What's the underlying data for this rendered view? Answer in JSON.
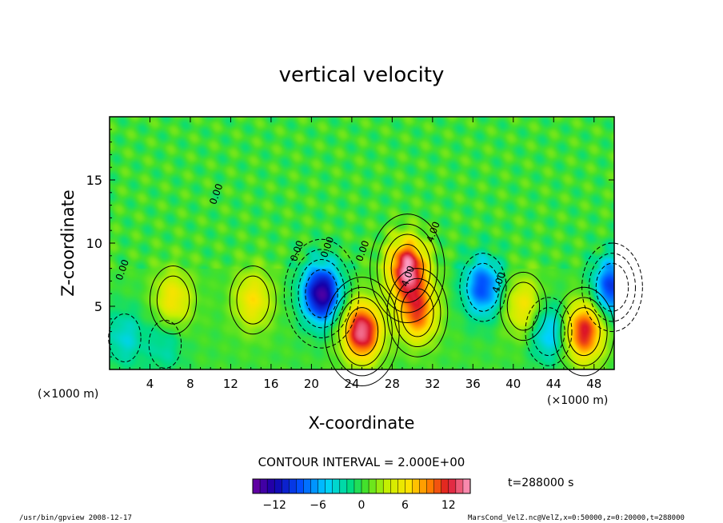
{
  "chart_data": {
    "type": "heatmap",
    "title": "vertical velocity",
    "xlabel": "X-coordinate",
    "ylabel": "Z-coordinate",
    "x_unit_left": "(×1000 m)",
    "x_unit_right": "(×1000 m)",
    "xlim": [
      0,
      50
    ],
    "ylim": [
      0,
      20
    ],
    "x_ticks": [
      "4",
      "8",
      "12",
      "16",
      "20",
      "24",
      "28",
      "32",
      "36",
      "40",
      "44",
      "48"
    ],
    "x_tick_values": [
      4,
      8,
      12,
      16,
      20,
      24,
      28,
      32,
      36,
      40,
      44,
      48
    ],
    "y_ticks": [
      "5",
      "10",
      "15"
    ],
    "y_tick_values": [
      5,
      10,
      15
    ],
    "contour_interval_text": "CONTOUR INTERVAL = 2.000E+00",
    "time_label": "t=288000 s",
    "contour_labels": [
      "0.00",
      "0.00",
      "0.00",
      "0.00",
      "0.00",
      "4.00",
      "4.00",
      "4.00"
    ],
    "colorbar": {
      "min": -15,
      "max": 15,
      "tick_labels": [
        "−12",
        "−6",
        "0",
        "6",
        "12"
      ],
      "tick_values": [
        -12,
        -6,
        0,
        6,
        12
      ]
    },
    "features": [
      {
        "x": 1.5,
        "z": 2.5,
        "value": -4
      },
      {
        "x": 5.5,
        "z": 2.0,
        "value": -3
      },
      {
        "x": 6.3,
        "z": 5.5,
        "value": 6
      },
      {
        "x": 14.2,
        "z": 5.5,
        "value": 6
      },
      {
        "x": 21.0,
        "z": 6.0,
        "value": -14
      },
      {
        "x": 25.0,
        "z": 3.0,
        "value": 14
      },
      {
        "x": 29.5,
        "z": 8.0,
        "value": 14
      },
      {
        "x": 30.5,
        "z": 4.5,
        "value": 10
      },
      {
        "x": 37.0,
        "z": 6.5,
        "value": -9
      },
      {
        "x": 41.0,
        "z": 5.0,
        "value": 6
      },
      {
        "x": 43.5,
        "z": 3.0,
        "value": -6
      },
      {
        "x": 47.0,
        "z": 3.0,
        "value": 12
      },
      {
        "x": 49.8,
        "z": 6.5,
        "value": -10
      }
    ],
    "grid": false
  },
  "footer": {
    "left": "/usr/bin/gpview   2008-12-17",
    "right": "MarsCond_VelZ.nc@VelZ,x=0:50000,z=0:20000,t=288000"
  }
}
